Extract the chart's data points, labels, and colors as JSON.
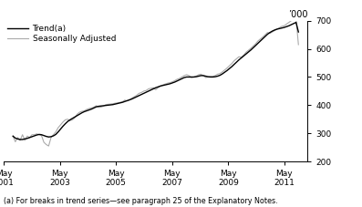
{
  "title": "’000",
  "footnote": "(a) For breaks in trend series—see paragraph 25 of the Explanatory Notes.",
  "legend": [
    "Trend(a)",
    "Seasonally Adjusted"
  ],
  "trend_color": "#000000",
  "seasonal_color": "#aaaaaa",
  "ylim": [
    200,
    700
  ],
  "yticks": [
    200,
    300,
    400,
    500,
    600,
    700
  ],
  "xtick_years": [
    2001,
    2003,
    2005,
    2007,
    2009,
    2011
  ],
  "trend": [
    290,
    283,
    280,
    278,
    278,
    280,
    282,
    285,
    288,
    291,
    294,
    296,
    295,
    292,
    289,
    287,
    288,
    291,
    296,
    305,
    315,
    325,
    334,
    342,
    348,
    353,
    358,
    363,
    368,
    373,
    377,
    380,
    383,
    386,
    390,
    394,
    396,
    397,
    398,
    399,
    400,
    401,
    402,
    404,
    406,
    408,
    410,
    413,
    416,
    419,
    422,
    426,
    430,
    434,
    438,
    442,
    446,
    450,
    454,
    458,
    462,
    465,
    468,
    470,
    472,
    474,
    476,
    479,
    482,
    486,
    490,
    494,
    498,
    500,
    500,
    500,
    500,
    501,
    503,
    505,
    505,
    503,
    501,
    500,
    500,
    501,
    503,
    506,
    511,
    517,
    523,
    530,
    537,
    545,
    553,
    561,
    568,
    575,
    582,
    589,
    596,
    604,
    612,
    620,
    628,
    636,
    644,
    652,
    658,
    663,
    667,
    670,
    672,
    674,
    676,
    679,
    682,
    686,
    690,
    694,
    660
  ],
  "seasonal": [
    290,
    270,
    285,
    275,
    295,
    275,
    290,
    285,
    295,
    295,
    298,
    295,
    292,
    268,
    260,
    255,
    285,
    295,
    305,
    320,
    330,
    340,
    348,
    350,
    345,
    348,
    355,
    368,
    375,
    378,
    380,
    385,
    388,
    390,
    393,
    398,
    392,
    393,
    396,
    402,
    403,
    404,
    405,
    407,
    408,
    410,
    412,
    418,
    415,
    418,
    425,
    430,
    435,
    442,
    445,
    450,
    452,
    458,
    460,
    462,
    455,
    462,
    468,
    472,
    475,
    478,
    480,
    483,
    487,
    492,
    495,
    500,
    505,
    508,
    505,
    498,
    500,
    503,
    508,
    510,
    505,
    498,
    500,
    502,
    502,
    505,
    510,
    512,
    518,
    525,
    532,
    540,
    548,
    558,
    565,
    572,
    570,
    578,
    588,
    595,
    602,
    610,
    618,
    628,
    635,
    642,
    650,
    658,
    655,
    660,
    665,
    670,
    675,
    680,
    682,
    688,
    694,
    700,
    704,
    708,
    615
  ],
  "n_points": 121,
  "x_start_year": 2001.333,
  "x_end_year": 2011.5,
  "xlim": [
    2001.25,
    2011.83
  ]
}
